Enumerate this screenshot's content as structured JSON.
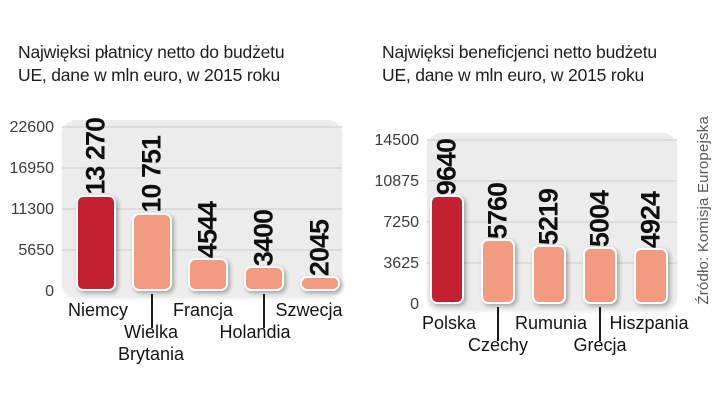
{
  "source_note": "Źródło: Komisja Europejska",
  "colors": {
    "highlight": "#c32032",
    "normal": "#f29b80",
    "plot_bg": "#ececec",
    "gridline": "#dcdcdc"
  },
  "chart_data": [
    {
      "type": "bar",
      "title": "Najwięksi płatnicy netto do budżetu UE, dane w mln euro, w 2015 roku",
      "title_lines": [
        "Najwięksi płatnicy netto do budżetu",
        "UE, dane w mln euro, w 2015 roku"
      ],
      "categories": [
        "Niemcy",
        "Wielka Brytania",
        "Francja",
        "Holandia",
        "Szwecja"
      ],
      "values": [
        13270,
        10751,
        4544,
        3400,
        2045
      ],
      "value_labels": [
        "13 270",
        "10 751",
        "4544",
        "3400",
        "2045"
      ],
      "bar_colors": [
        "highlight",
        "normal",
        "normal",
        "normal",
        "normal"
      ],
      "label_display": [
        "Niemcy",
        "Wielka\nBrytania",
        "Francja",
        "Holandia",
        "Szwecja"
      ],
      "label_rows": [
        1,
        2,
        1,
        2,
        1
      ],
      "ylim": [
        0,
        22600
      ],
      "yticks": [
        0,
        5650,
        11300,
        16950,
        22600
      ],
      "grid": true,
      "legend": "none",
      "ylabel": "",
      "xlabel": ""
    },
    {
      "type": "bar",
      "title": "Najwięksi beneficjenci netto budżetu UE, dane w mln euro, w 2015 roku",
      "title_lines": [
        "Najwięksi beneficjenci netto budżetu",
        "UE, dane w mln euro, w 2015 roku"
      ],
      "categories": [
        "Polska",
        "Czechy",
        "Rumunia",
        "Grecja",
        "Hiszpania"
      ],
      "values": [
        9640,
        5760,
        5219,
        5004,
        4924
      ],
      "value_labels": [
        "9640",
        "5760",
        "5219",
        "5004",
        "4924"
      ],
      "bar_colors": [
        "highlight",
        "normal",
        "normal",
        "normal",
        "normal"
      ],
      "label_display": [
        "Polska",
        "Czechy",
        "Rumunia",
        "Grecja",
        "Hiszpania"
      ],
      "label_rows": [
        1,
        2,
        1,
        2,
        1
      ],
      "ylim": [
        0,
        14500
      ],
      "yticks": [
        0,
        3625,
        7250,
        10875,
        14500
      ],
      "grid": true,
      "legend": "none",
      "ylabel": "",
      "xlabel": ""
    }
  ]
}
